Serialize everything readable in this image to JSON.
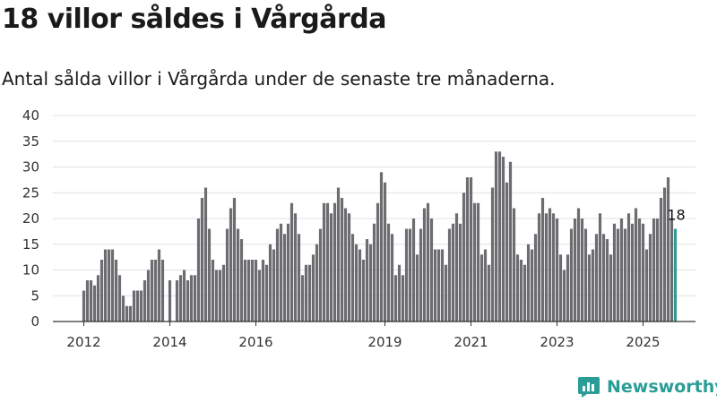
{
  "title": "18 villor såldes i Vårgårda",
  "subtitle": "Antal sålda villor i Vårgårda under de senaste tre månaderna.",
  "brand": "Newsworthy",
  "colors": {
    "bar": "#6d6c70",
    "highlight": "#2a9d96",
    "grid": "#e0e0e0",
    "axis": "#333333"
  },
  "chart_data": {
    "type": "bar",
    "title": "18 villor såldes i Vårgårda",
    "xlabel": "",
    "ylabel": "",
    "ylim": [
      0,
      40
    ],
    "yticks": [
      0,
      5,
      10,
      15,
      20,
      25,
      30,
      35,
      40
    ],
    "xticks": [
      "2012",
      "2014",
      "2016",
      "2019",
      "2021",
      "2023",
      "2025"
    ],
    "grid": true,
    "values": [
      6,
      8,
      8,
      7,
      9,
      12,
      14,
      14,
      14,
      12,
      9,
      5,
      3,
      3,
      6,
      6,
      6,
      8,
      10,
      12,
      12,
      14,
      12,
      null,
      8,
      null,
      8,
      9,
      10,
      8,
      9,
      9,
      20,
      24,
      26,
      18,
      12,
      10,
      10,
      11,
      18,
      22,
      24,
      18,
      16,
      12,
      12,
      12,
      12,
      10,
      12,
      11,
      15,
      14,
      18,
      19,
      17,
      19,
      23,
      21,
      17,
      9,
      11,
      11,
      13,
      15,
      18,
      23,
      23,
      21,
      23,
      26,
      24,
      22,
      21,
      17,
      15,
      14,
      12,
      16,
      15,
      19,
      23,
      29,
      27,
      19,
      17,
      9,
      11,
      9,
      18,
      18,
      20,
      13,
      18,
      22,
      23,
      20,
      14,
      14,
      14,
      11,
      18,
      19,
      21,
      19,
      25,
      28,
      28,
      23,
      23,
      13,
      14,
      11,
      26,
      33,
      33,
      32,
      27,
      31,
      22,
      13,
      12,
      11,
      15,
      14,
      17,
      21,
      24,
      21,
      22,
      21,
      20,
      13,
      10,
      13,
      18,
      20,
      22,
      20,
      18,
      13,
      14,
      17,
      21,
      17,
      16,
      13,
      19,
      18,
      20,
      18,
      21,
      19,
      22,
      20,
      19,
      14,
      17,
      20,
      20,
      24,
      26,
      28,
      20,
      18
    ],
    "highlight": {
      "value": 18,
      "label": "18"
    }
  }
}
